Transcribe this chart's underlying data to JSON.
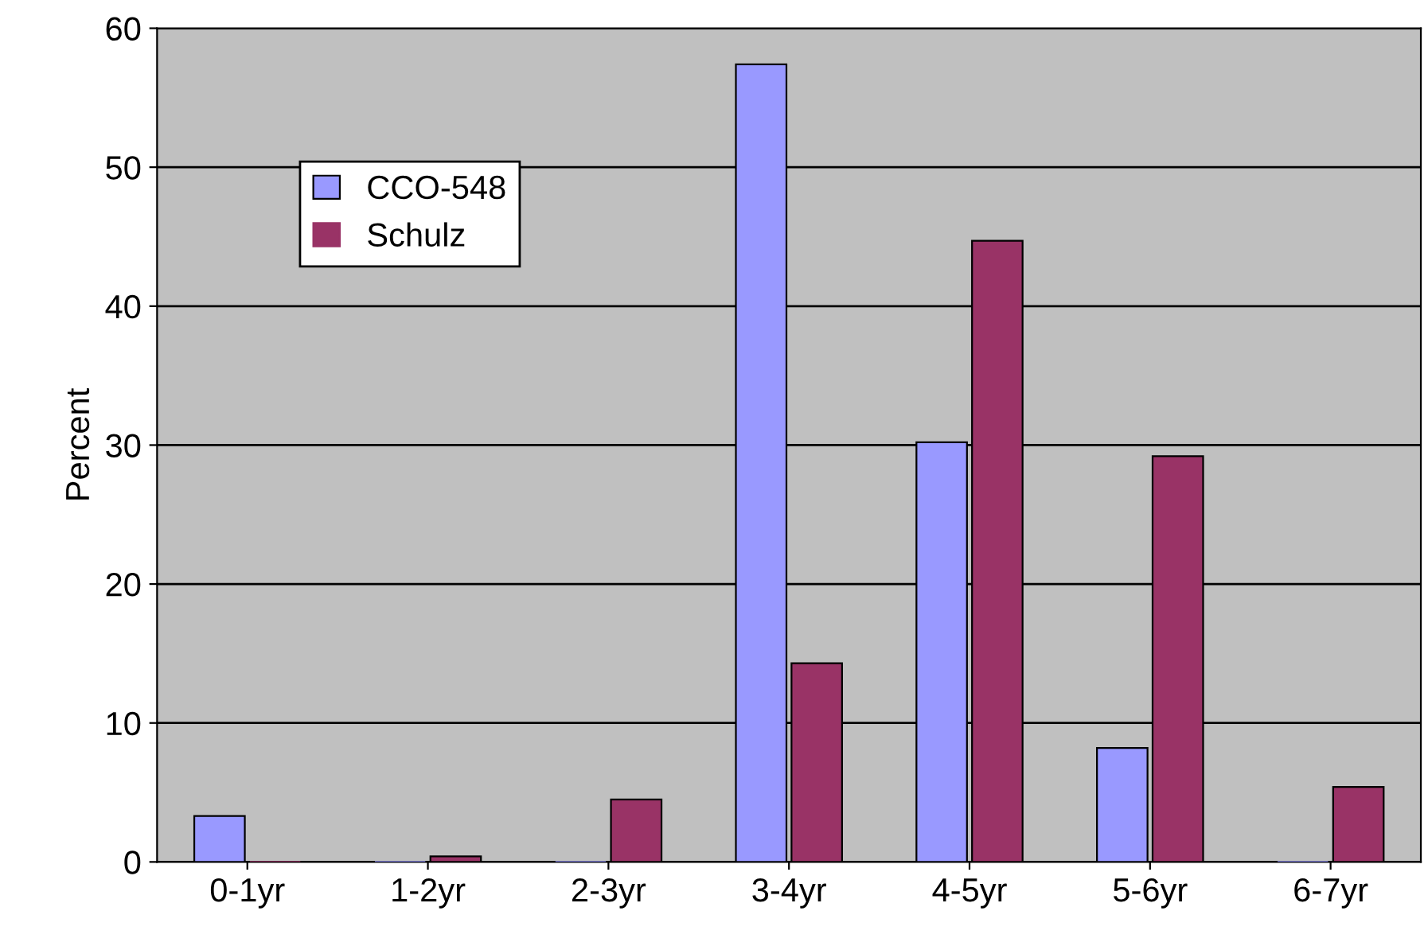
{
  "chart_data": {
    "type": "bar",
    "ylabel": "Percent",
    "categories": [
      "0-1yr",
      "1-2yr",
      "2-3yr",
      "3-4yr",
      "4-5yr",
      "5-6yr",
      "6-7yr"
    ],
    "series": [
      {
        "name": "CCO-548",
        "color": "#9999ff",
        "values": [
          3.3,
          0,
          0,
          57.4,
          30.2,
          8.2,
          0
        ]
      },
      {
        "name": "Schulz",
        "color": "#993366",
        "values": [
          0,
          0.4,
          4.5,
          14.3,
          44.7,
          29.2,
          5.4
        ]
      }
    ],
    "ylim": [
      0,
      60
    ],
    "yticks": [
      0,
      10,
      20,
      30,
      40,
      50,
      60
    ],
    "grid": "y",
    "legend": "top left"
  }
}
